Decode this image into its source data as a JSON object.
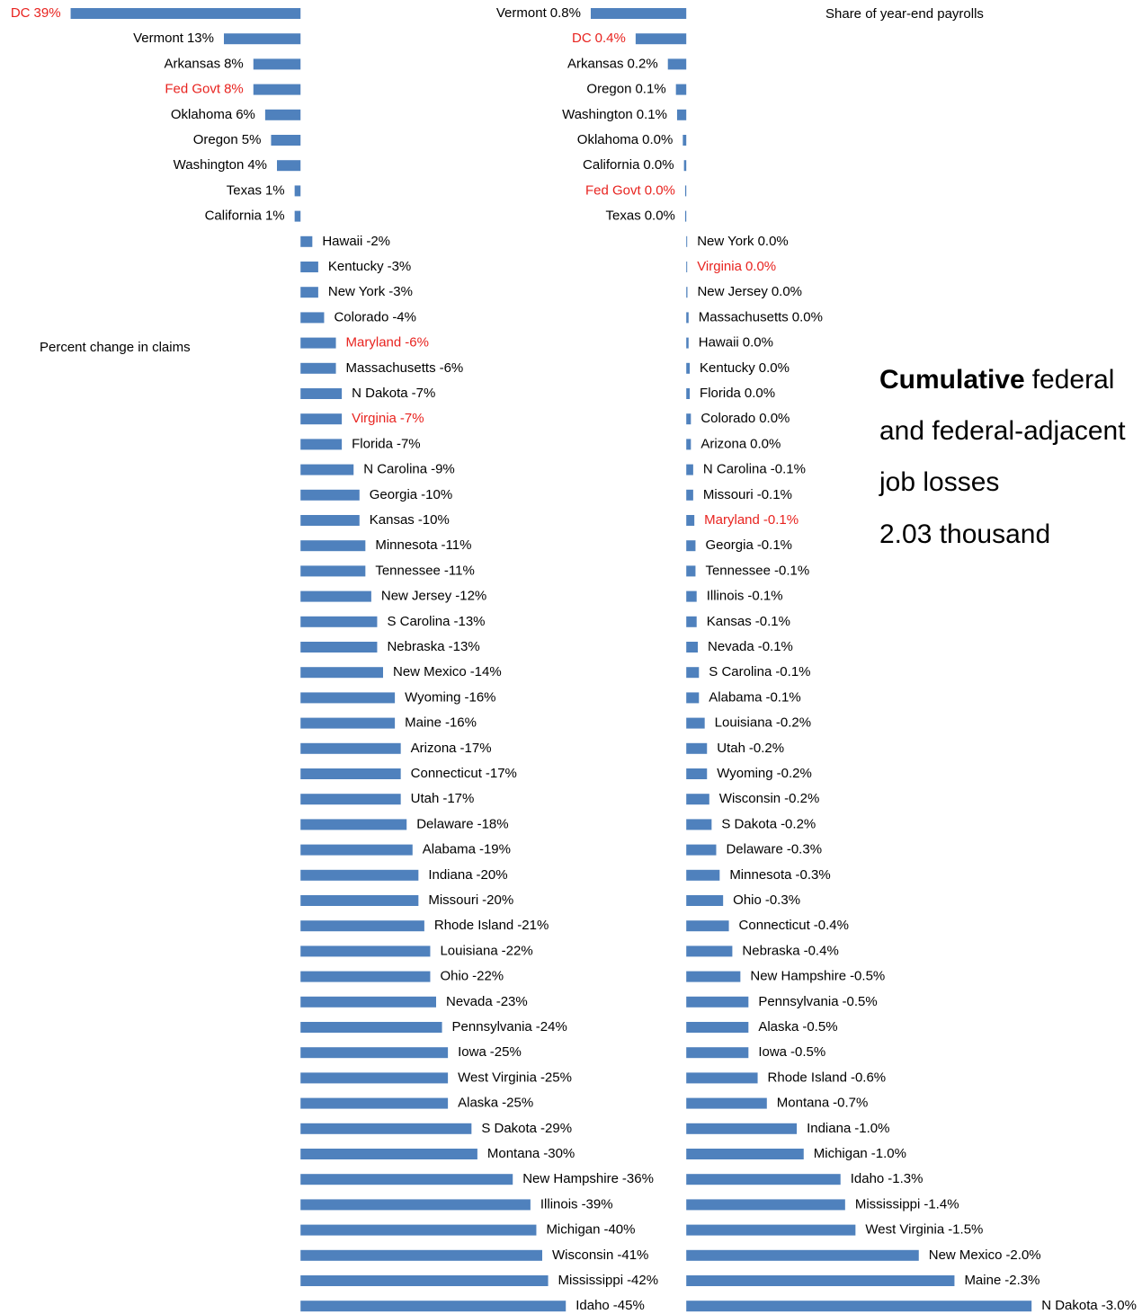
{
  "chart_data": [
    {
      "type": "bar",
      "orientation": "horizontal",
      "title": "Percent change in claims",
      "categories": [
        "DC",
        "Vermont",
        "Arkansas",
        "Fed Govt",
        "Oklahoma",
        "Oregon",
        "Washington",
        "Texas",
        "California",
        "Hawaii",
        "Kentucky",
        "New York",
        "Colorado",
        "Maryland",
        "Massachusetts",
        "N Dakota",
        "Virginia",
        "Florida",
        "N Carolina",
        "Georgia",
        "Kansas",
        "Minnesota",
        "Tennessee",
        "New Jersey",
        "S Carolina",
        "Nebraska",
        "New Mexico",
        "Wyoming",
        "Maine",
        "Arizona",
        "Connecticut",
        "Utah",
        "Delaware",
        "Alabama",
        "Indiana",
        "Missouri",
        "Rhode Island",
        "Louisiana",
        "Ohio",
        "Nevada",
        "Pennsylvania",
        "Iowa",
        "West Virginia",
        "Alaska",
        "S Dakota",
        "Montana",
        "New Hampshire",
        "Illinois",
        "Michigan",
        "Wisconsin",
        "Mississippi",
        "Idaho"
      ],
      "values": [
        39,
        13,
        8,
        8,
        6,
        5,
        4,
        1,
        1,
        -2,
        -3,
        -3,
        -4,
        -6,
        -6,
        -7,
        -7,
        -7,
        -9,
        -10,
        -10,
        -11,
        -11,
        -12,
        -13,
        -13,
        -14,
        -16,
        -16,
        -17,
        -17,
        -17,
        -18,
        -19,
        -20,
        -20,
        -21,
        -22,
        -22,
        -23,
        -24,
        -25,
        -25,
        -25,
        -29,
        -30,
        -36,
        -39,
        -40,
        -41,
        -42,
        -45
      ],
      "value_labels": [
        "39%",
        "13%",
        "8%",
        "8%",
        "6%",
        "5%",
        "4%",
        "1%",
        "1%",
        "-2%",
        "-3%",
        "-3%",
        "-4%",
        "-6%",
        "-6%",
        "-7%",
        "-7%",
        "-7%",
        "-9%",
        "-10%",
        "-10%",
        "-11%",
        "-11%",
        "-12%",
        "-13%",
        "-13%",
        "-14%",
        "-16%",
        "-16%",
        "-17%",
        "-17%",
        "-17%",
        "-18%",
        "-19%",
        "-20%",
        "-20%",
        "-21%",
        "-22%",
        "-22%",
        "-23%",
        "-24%",
        "-25%",
        "-25%",
        "-25%",
        "-29%",
        "-30%",
        "-36%",
        "-39%",
        "-40%",
        "-41%",
        "-42%",
        "-45%"
      ],
      "label_colors": [
        "#e8231f",
        "#000",
        "#000",
        "#e8231f",
        "#000",
        "#000",
        "#000",
        "#000",
        "#000",
        "#000",
        "#000",
        "#000",
        "#000",
        "#e8231f",
        "#000",
        "#000",
        "#e8231f",
        "#000",
        "#000",
        "#000",
        "#000",
        "#000",
        "#000",
        "#000",
        "#000",
        "#000",
        "#000",
        "#000",
        "#000",
        "#000",
        "#000",
        "#000",
        "#000",
        "#000",
        "#000",
        "#000",
        "#000",
        "#000",
        "#000",
        "#000",
        "#000",
        "#000",
        "#000",
        "#000",
        "#000",
        "#000",
        "#000",
        "#000",
        "#000",
        "#000",
        "#000",
        "#000"
      ],
      "color": "#4f81bd",
      "xlim": [
        -50,
        40
      ],
      "reverse": true
    },
    {
      "type": "bar",
      "orientation": "horizontal",
      "title": "Share of year-end payrolls",
      "categories": [
        "Vermont",
        "DC",
        "Arkansas",
        "Oregon",
        "Washington",
        "Oklahoma",
        "California",
        "Fed Govt",
        "Texas",
        "New York",
        "Virginia",
        "New Jersey",
        "Massachusetts",
        "Hawaii",
        "Kentucky",
        "Florida",
        "Colorado",
        "Arizona",
        "N Carolina",
        "Missouri",
        "Maryland",
        "Georgia",
        "Tennessee",
        "Illinois",
        "Kansas",
        "Nevada",
        "S Carolina",
        "Alabama",
        "Louisiana",
        "Utah",
        "Wyoming",
        "Wisconsin",
        "S Dakota",
        "Delaware",
        "Minnesota",
        "Ohio",
        "Connecticut",
        "Nebraska",
        "New Hampshire",
        "Pennsylvania",
        "Alaska",
        "Iowa",
        "Rhode Island",
        "Montana",
        "Indiana",
        "Michigan",
        "Idaho",
        "Mississippi",
        "West Virginia",
        "New Mexico",
        "Maine",
        "N Dakota"
      ],
      "values": [
        0.83,
        0.44,
        0.16,
        0.09,
        0.08,
        0.03,
        0.02,
        0.01,
        0.01,
        -0.005,
        -0.005,
        -0.01,
        -0.02,
        -0.02,
        -0.03,
        -0.03,
        -0.04,
        -0.04,
        -0.06,
        -0.06,
        -0.07,
        -0.08,
        -0.08,
        -0.09,
        -0.09,
        -0.1,
        -0.11,
        -0.11,
        -0.16,
        -0.18,
        -0.18,
        -0.2,
        -0.22,
        -0.26,
        -0.29,
        -0.32,
        -0.37,
        -0.4,
        -0.47,
        -0.54,
        -0.54,
        -0.54,
        -0.62,
        -0.7,
        -0.96,
        -1.02,
        -1.34,
        -1.38,
        -1.47,
        -2.02,
        -2.33,
        -3.0
      ],
      "value_labels": [
        "0.8%",
        "0.4%",
        "0.2%",
        "0.1%",
        "0.1%",
        "0.0%",
        "0.0%",
        "0.0%",
        "0.0%",
        "0.0%",
        "0.0%",
        "0.0%",
        "0.0%",
        "0.0%",
        "0.0%",
        "0.0%",
        "0.0%",
        "0.0%",
        "-0.1%",
        "-0.1%",
        "-0.1%",
        "-0.1%",
        "-0.1%",
        "-0.1%",
        "-0.1%",
        "-0.1%",
        "-0.1%",
        "-0.1%",
        "-0.2%",
        "-0.2%",
        "-0.2%",
        "-0.2%",
        "-0.2%",
        "-0.3%",
        "-0.3%",
        "-0.3%",
        "-0.4%",
        "-0.4%",
        "-0.5%",
        "-0.5%",
        "-0.5%",
        "-0.5%",
        "-0.6%",
        "-0.7%",
        "-1.0%",
        "-1.0%",
        "-1.3%",
        "-1.4%",
        "-1.5%",
        "-2.0%",
        "-2.3%",
        "-3.0%"
      ],
      "label_colors": [
        "#000",
        "#e8231f",
        "#000",
        "#000",
        "#000",
        "#000",
        "#000",
        "#e8231f",
        "#000",
        "#000",
        "#e8231f",
        "#000",
        "#000",
        "#000",
        "#000",
        "#000",
        "#000",
        "#000",
        "#000",
        "#000",
        "#e8231f",
        "#000",
        "#000",
        "#000",
        "#000",
        "#000",
        "#000",
        "#000",
        "#000",
        "#000",
        "#000",
        "#000",
        "#000",
        "#000",
        "#000",
        "#000",
        "#000",
        "#000",
        "#000",
        "#000",
        "#000",
        "#000",
        "#000",
        "#000",
        "#000",
        "#000",
        "#000",
        "#000",
        "#000",
        "#000",
        "#000",
        "#000"
      ],
      "color": "#4f81bd",
      "xlim": [
        -3.1,
        0.9
      ],
      "reverse": true
    }
  ],
  "note": {
    "emphasis": "Cumulative",
    "lines": [
      "federal",
      "and federal-adjacent",
      "job losses",
      "2.03 thousand"
    ]
  }
}
